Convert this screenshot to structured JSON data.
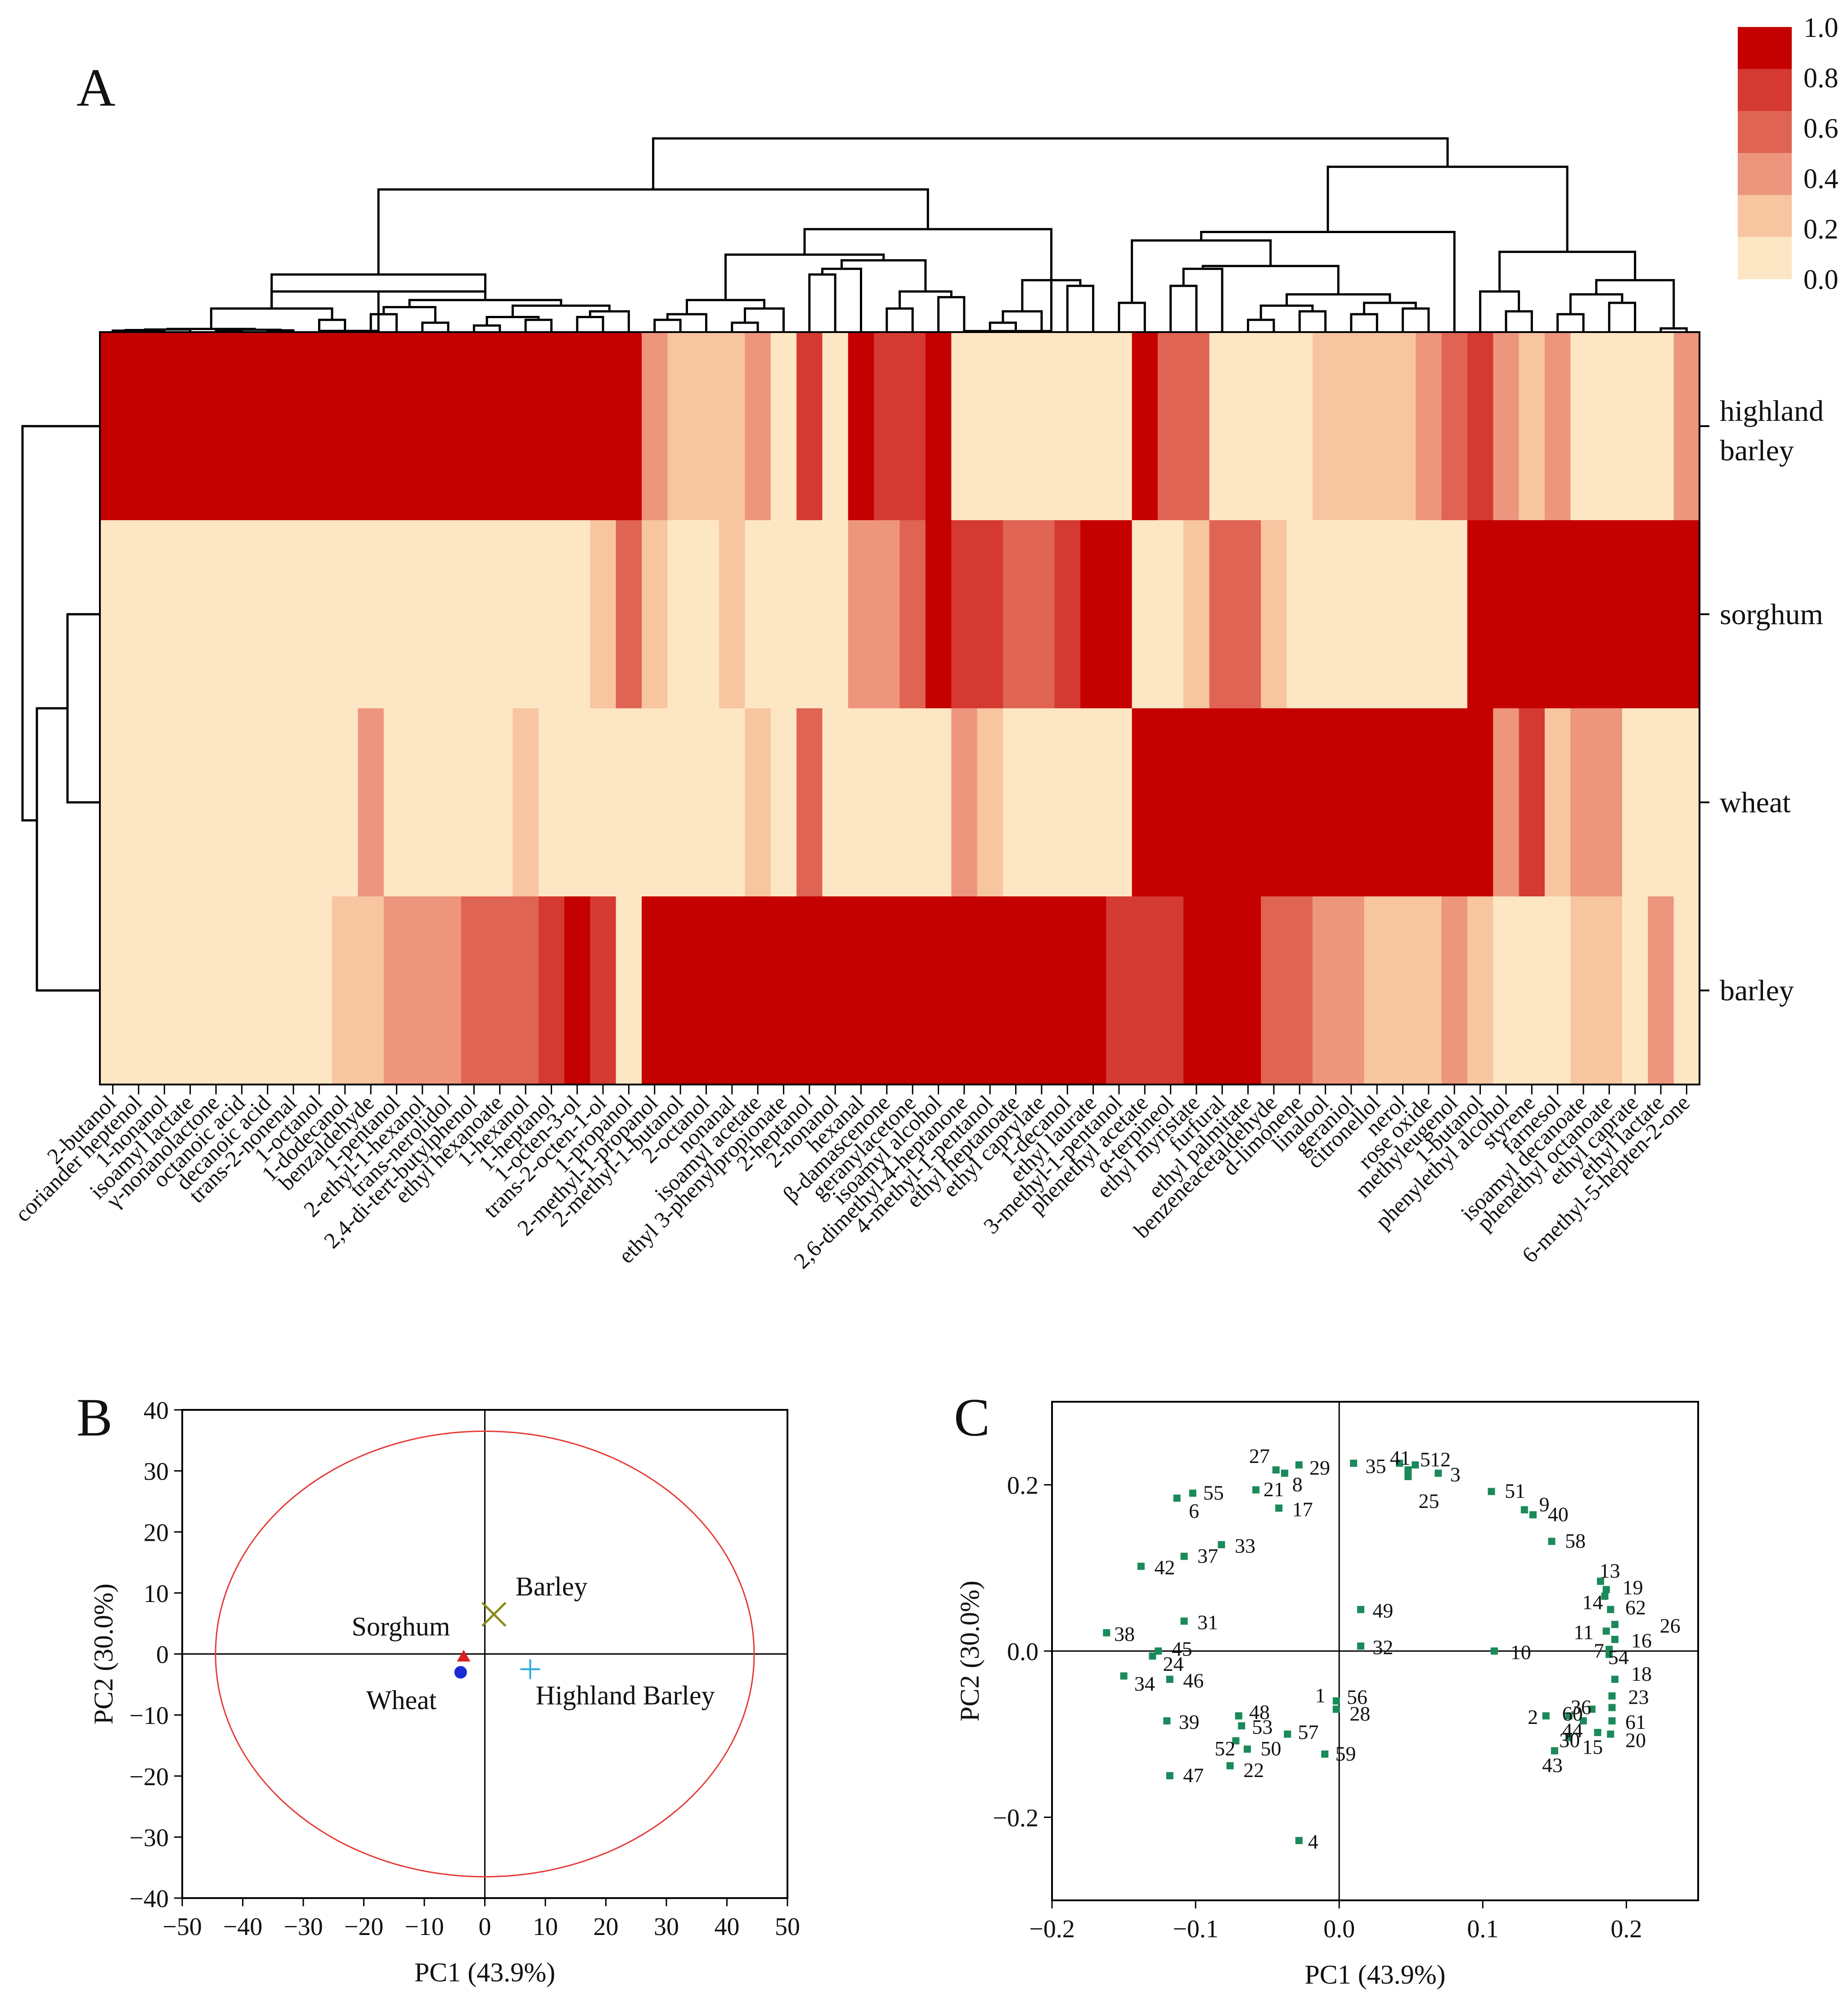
{
  "panel_labels": {
    "a": "A",
    "b": "B",
    "c": "C"
  },
  "colors": {
    "scale": [
      "#fde6c4",
      "#f7c5a0",
      "#ed957d",
      "#df6454",
      "#d43a31",
      "#c50000"
    ],
    "pca_ellipse": "#e53935",
    "loading_marker": "#1b8a5a",
    "highland_barley_marker": "#29a9e1",
    "barley_marker": "#8a8a1f",
    "sorghum_marker": "#d62020",
    "wheat_marker": "#1a2bd6"
  },
  "chart_data": [
    {
      "type": "heatmap",
      "panel": "A",
      "rows": [
        "highland barley",
        "sorghum",
        "wheat",
        "barley"
      ],
      "row_labels": [
        [
          "highland",
          "barley"
        ],
        [
          "sorghum"
        ],
        [
          "wheat"
        ],
        [
          "barley"
        ]
      ],
      "columns": [
        "2-butanol",
        "coriander heptenol",
        "1-nonanol",
        "isoamyl lactate",
        "γ-nonanolactone",
        "octanoic acid",
        "decanoic acid",
        "trans-2-nonenal",
        "1-octanol",
        "1-dodecanol",
        "benzaldehyde",
        "1-pentanol",
        "2-ethyl-1-hexanol",
        "trans-nerolidol",
        "2,4-di-tert-butylphenol",
        "ethyl hexanoate",
        "1-hexanol",
        "1-heptanol",
        "1-octen-3-ol",
        "trans-2-octen-1-ol",
        "1-propanol",
        "2-methyl-1-propanol",
        "2-methyl-1-butanol",
        "2-octanol",
        "nonanal",
        "isoamyl acetate",
        "ethyl 3-phenylpropionate",
        "2-heptanol",
        "2-nonanol",
        "hexanal",
        "β-damascenone",
        "geranylacetone",
        "isoamyl alcohol",
        "2,6-dimethyl-4-heptanone",
        "4-methyl-1-pentanol",
        "ethyl heptanoate",
        "ethyl caprylate",
        "1-decanol",
        "ethyl laurate",
        "3-methyl-1-pentanol",
        "phenethyl acetate",
        "α-terpineol",
        "ethyl myristate",
        "furfural",
        "ethyl palmitate",
        "benzeneacetaldehyde",
        "d-limonene",
        "linalool",
        "geraniol",
        "citronellol",
        "nerol",
        "rose oxide",
        "methyleugenol",
        "1-butanol",
        "phenylethyl alcohol",
        "styrene",
        "farnesol",
        "isoamyl decanoate",
        "phenethyl octanoate",
        "ethyl caprate",
        "ethyl lactate",
        "6-methyl-5-hepten-2-one"
      ],
      "values": [
        [
          1,
          1,
          1,
          1,
          1,
          1,
          1,
          1,
          1,
          1,
          1,
          1,
          1,
          1,
          1,
          1,
          1,
          1,
          1,
          1,
          1,
          0.4,
          0.2,
          0.2,
          0.2,
          0.4,
          0.0,
          0.8,
          0.0,
          1,
          0.8,
          0.8,
          1,
          0.0,
          0.0,
          0.0,
          0.0,
          0.0,
          0.0,
          0.0,
          1,
          0.6,
          0.6,
          0.0,
          0.0,
          0.0,
          0.0,
          0.2,
          0.2,
          0.2,
          0.2,
          0.4,
          0.6,
          0.8,
          0.4,
          0.2,
          0.4,
          0.0,
          0.0,
          0.0,
          0.0,
          0.4
        ],
        [
          0.0,
          0.0,
          0.0,
          0.0,
          0.0,
          0.0,
          0.0,
          0.0,
          0.0,
          0.0,
          0.0,
          0.0,
          0.0,
          0.0,
          0.0,
          0.0,
          0.0,
          0.0,
          0.0,
          0.2,
          0.6,
          0.2,
          0.0,
          0.0,
          0.2,
          0.0,
          0.0,
          0.0,
          0.0,
          0.4,
          0.4,
          0.6,
          1,
          0.8,
          0.8,
          0.6,
          0.6,
          0.8,
          1,
          1,
          0.0,
          0.0,
          0.2,
          0.6,
          0.6,
          0.2,
          0.0,
          0.0,
          0.0,
          0.0,
          0.0,
          0.0,
          0.0,
          1,
          1,
          1,
          1,
          1,
          1,
          1,
          1,
          1
        ],
        [
          0.0,
          0.0,
          0.0,
          0.0,
          0.0,
          0.0,
          0.0,
          0.0,
          0.0,
          0.0,
          0.4,
          0.0,
          0.0,
          0.0,
          0.0,
          0.0,
          0.2,
          0.0,
          0.0,
          0.0,
          0.0,
          0.0,
          0.0,
          0.0,
          0.0,
          0.2,
          0.0,
          0.6,
          0.0,
          0.0,
          0.0,
          0.0,
          0.0,
          0.4,
          0.2,
          0.0,
          0.0,
          0.0,
          0.0,
          0.0,
          1,
          1,
          1,
          1,
          1,
          1,
          1,
          1,
          1,
          1,
          1,
          1,
          1,
          1,
          0.4,
          0.8,
          0.2,
          0.4,
          0.4,
          0.0,
          0.0,
          0.0
        ],
        [
          0.0,
          0.0,
          0.0,
          0.0,
          0.0,
          0.0,
          0.0,
          0.0,
          0.0,
          0.2,
          0.2,
          0.4,
          0.4,
          0.4,
          0.6,
          0.6,
          0.6,
          0.8,
          1,
          0.8,
          0.0,
          1,
          1,
          1,
          1,
          1,
          1,
          1,
          1,
          1,
          1,
          1,
          1,
          1,
          1,
          1,
          1,
          1,
          1,
          0.8,
          0.8,
          0.8,
          1,
          1,
          1,
          0.6,
          0.6,
          0.4,
          0.4,
          0.2,
          0.2,
          0.2,
          0.4,
          0.2,
          0.0,
          0.0,
          0.0,
          0.2,
          0.2,
          0.0,
          0.4,
          0.0
        ]
      ],
      "colorbar": {
        "ticks": [
          "1.0",
          "0.8",
          "0.6",
          "0.4",
          "0.2",
          "0.0"
        ],
        "range": [
          0,
          1
        ]
      }
    },
    {
      "type": "scatter",
      "panel": "B",
      "xlabel": "PC1 (43.9%)",
      "ylabel": "PC2 (30.0%)",
      "xlim": [
        -50,
        50
      ],
      "ylim": [
        -40,
        40
      ],
      "xticks": [
        -50,
        -40,
        -30,
        -20,
        -10,
        0,
        10,
        20,
        30,
        40,
        50
      ],
      "yticks": [
        40,
        30,
        20,
        10,
        0,
        -10,
        -20,
        -30,
        -40
      ],
      "confidence_ellipse": {
        "rx": 44.5,
        "ry": 36.5
      },
      "points": [
        {
          "name": "Barley",
          "x": 1.5,
          "y": 6.5,
          "marker": "x-cross"
        },
        {
          "name": "Sorghum",
          "x": -3.5,
          "y": -0.5,
          "marker": "triangle"
        },
        {
          "name": "Wheat",
          "x": -4.0,
          "y": -3.0,
          "marker": "circle"
        },
        {
          "name": "Highland Barley",
          "x": 7.5,
          "y": -2.5,
          "marker": "plus"
        }
      ]
    },
    {
      "type": "scatter",
      "panel": "C",
      "xlabel": "PC1 (43.9%)",
      "ylabel": "PC2 (30.0%)",
      "xlim": [
        -0.2,
        0.25
      ],
      "ylim": [
        -0.3,
        0.3
      ],
      "xticks": [
        "−0.2",
        "−0.1",
        "0.0",
        "0.1",
        "0.2"
      ],
      "xtick_values": [
        -0.2,
        -0.1,
        0,
        0.1,
        0.2
      ],
      "yticks": [
        "0.2",
        "0.0",
        "−0.2"
      ],
      "ytick_values": [
        0.2,
        0,
        -0.2
      ],
      "points": [
        {
          "label": "1",
          "x": 0.19,
          "y": -0.068,
          "lx": -0.018,
          "ly": -0.052
        },
        {
          "label": "2",
          "x": 0.144,
          "y": -0.078,
          "lx": 0.13,
          "ly": -0.078
        },
        {
          "label": "3",
          "x": 0.069,
          "y": 0.214,
          "lx": 0.076,
          "ly": 0.214
        },
        {
          "label": "4",
          "x": -0.028,
          "y": -0.228,
          "lx": -0.023,
          "ly": -0.228
        },
        {
          "label": "5",
          "x": 0.048,
          "y": 0.218,
          "lx": 0.055,
          "ly": 0.232
        },
        {
          "label": "6",
          "x": -0.113,
          "y": 0.184,
          "lx": -0.106,
          "ly": 0.17
        },
        {
          "label": "7",
          "x": 0.188,
          "y": 0.002,
          "lx": 0.176,
          "ly": 0.002
        },
        {
          "label": "8",
          "x": -0.038,
          "y": 0.214,
          "lx": -0.034,
          "ly": 0.202
        },
        {
          "label": "9",
          "x": 0.129,
          "y": 0.17,
          "lx": 0.138,
          "ly": 0.178
        },
        {
          "label": "10",
          "x": 0.108,
          "y": 0.0,
          "lx": 0.118,
          "ly": 0.0
        },
        {
          "label": "11",
          "x": 0.186,
          "y": 0.024,
          "lx": 0.162,
          "ly": 0.024
        },
        {
          "label": "12",
          "x": 0.053,
          "y": 0.224,
          "lx": 0.062,
          "ly": 0.232
        },
        {
          "label": "13",
          "x": 0.182,
          "y": 0.084,
          "lx": 0.18,
          "ly": 0.098
        },
        {
          "label": "14",
          "x": 0.185,
          "y": 0.066,
          "lx": 0.168,
          "ly": 0.06
        },
        {
          "label": "15",
          "x": 0.18,
          "y": -0.098,
          "lx": 0.168,
          "ly": -0.114
        },
        {
          "label": "16",
          "x": 0.192,
          "y": 0.014,
          "lx": 0.202,
          "ly": 0.014
        },
        {
          "label": "17",
          "x": -0.042,
          "y": 0.172,
          "lx": -0.034,
          "ly": 0.172
        },
        {
          "label": "18",
          "x": 0.192,
          "y": -0.034,
          "lx": 0.202,
          "ly": -0.026
        },
        {
          "label": "19",
          "x": 0.186,
          "y": 0.074,
          "lx": 0.196,
          "ly": 0.078
        },
        {
          "label": "20",
          "x": 0.189,
          "y": -0.1,
          "lx": 0.198,
          "ly": -0.106
        },
        {
          "label": "21",
          "x": -0.058,
          "y": 0.194,
          "lx": -0.054,
          "ly": 0.196
        },
        {
          "label": "22",
          "x": -0.076,
          "y": -0.138,
          "lx": -0.068,
          "ly": -0.142
        },
        {
          "label": "23",
          "x": 0.19,
          "y": -0.054,
          "lx": 0.2,
          "ly": -0.054
        },
        {
          "label": "24",
          "x": -0.13,
          "y": -0.006,
          "lx": -0.124,
          "ly": -0.014
        },
        {
          "label": "25",
          "x": 0.048,
          "y": 0.21,
          "lx": 0.054,
          "ly": 0.182
        },
        {
          "label": "26",
          "x": 0.192,
          "y": 0.032,
          "lx": 0.222,
          "ly": 0.032
        },
        {
          "label": "27",
          "x": -0.044,
          "y": 0.218,
          "lx": -0.064,
          "ly": 0.236
        },
        {
          "label": "28",
          "x": -0.002,
          "y": -0.07,
          "lx": 0.006,
          "ly": -0.074
        },
        {
          "label": "29",
          "x": -0.028,
          "y": 0.224,
          "lx": -0.022,
          "ly": 0.222
        },
        {
          "label": "30",
          "x": 0.16,
          "y": -0.104,
          "lx": 0.152,
          "ly": -0.106
        },
        {
          "label": "31",
          "x": -0.108,
          "y": 0.036,
          "lx": -0.1,
          "ly": 0.036
        },
        {
          "label": "32",
          "x": 0.015,
          "y": 0.006,
          "lx": 0.022,
          "ly": 0.006
        },
        {
          "label": "33",
          "x": -0.082,
          "y": 0.128,
          "lx": -0.074,
          "ly": 0.128
        },
        {
          "label": "34",
          "x": -0.15,
          "y": -0.03,
          "lx": -0.144,
          "ly": -0.038
        },
        {
          "label": "35",
          "x": 0.01,
          "y": 0.226,
          "lx": 0.017,
          "ly": 0.224
        },
        {
          "label": "36",
          "x": 0.176,
          "y": -0.07,
          "lx": 0.16,
          "ly": -0.066
        },
        {
          "label": "37",
          "x": -0.108,
          "y": 0.114,
          "lx": -0.1,
          "ly": 0.116
        },
        {
          "label": "38",
          "x": -0.162,
          "y": 0.022,
          "lx": -0.158,
          "ly": 0.022
        },
        {
          "label": "39",
          "x": -0.12,
          "y": -0.084,
          "lx": -0.113,
          "ly": -0.084
        },
        {
          "label": "40",
          "x": 0.135,
          "y": 0.164,
          "lx": 0.144,
          "ly": 0.166
        },
        {
          "label": "41",
          "x": 0.042,
          "y": 0.226,
          "lx": 0.034,
          "ly": 0.234
        },
        {
          "label": "42",
          "x": -0.138,
          "y": 0.102,
          "lx": -0.13,
          "ly": 0.102
        },
        {
          "label": "43",
          "x": 0.15,
          "y": -0.12,
          "lx": 0.14,
          "ly": -0.136
        },
        {
          "label": "44",
          "x": 0.17,
          "y": -0.084,
          "lx": 0.154,
          "ly": -0.094
        },
        {
          "label": "45",
          "x": -0.126,
          "y": 0.0,
          "lx": -0.118,
          "ly": 0.004
        },
        {
          "label": "46",
          "x": -0.118,
          "y": -0.034,
          "lx": -0.11,
          "ly": -0.034
        },
        {
          "label": "47",
          "x": -0.118,
          "y": -0.15,
          "lx": -0.11,
          "ly": -0.148
        },
        {
          "label": "48",
          "x": -0.07,
          "y": -0.078,
          "lx": -0.064,
          "ly": -0.072
        },
        {
          "label": "49",
          "x": 0.015,
          "y": 0.05,
          "lx": 0.022,
          "ly": 0.05
        },
        {
          "label": "50",
          "x": -0.064,
          "y": -0.118,
          "lx": -0.056,
          "ly": -0.116
        },
        {
          "label": "51",
          "x": 0.106,
          "y": 0.192,
          "lx": 0.114,
          "ly": 0.194
        },
        {
          "label": "52",
          "x": -0.072,
          "y": -0.108,
          "lx": -0.088,
          "ly": -0.116
        },
        {
          "label": "53",
          "x": -0.068,
          "y": -0.09,
          "lx": -0.062,
          "ly": -0.09
        },
        {
          "label": "54",
          "x": 0.188,
          "y": -0.004,
          "lx": 0.186,
          "ly": -0.006
        },
        {
          "label": "55",
          "x": -0.102,
          "y": 0.19,
          "lx": -0.096,
          "ly": 0.192
        },
        {
          "label": "56",
          "x": -0.002,
          "y": -0.06,
          "lx": 0.004,
          "ly": -0.054
        },
        {
          "label": "57",
          "x": -0.036,
          "y": -0.1,
          "lx": -0.03,
          "ly": -0.096
        },
        {
          "label": "58",
          "x": 0.148,
          "y": 0.132,
          "lx": 0.156,
          "ly": 0.134
        },
        {
          "label": "59",
          "x": -0.01,
          "y": -0.124,
          "lx": -0.004,
          "ly": -0.122
        },
        {
          "label": "60",
          "x": 0.16,
          "y": -0.078,
          "lx": 0.154,
          "ly": -0.074
        },
        {
          "label": "61",
          "x": 0.19,
          "y": -0.084,
          "lx": 0.198,
          "ly": -0.084
        },
        {
          "label": "62",
          "x": 0.189,
          "y": 0.05,
          "lx": 0.198,
          "ly": 0.054
        }
      ]
    }
  ]
}
